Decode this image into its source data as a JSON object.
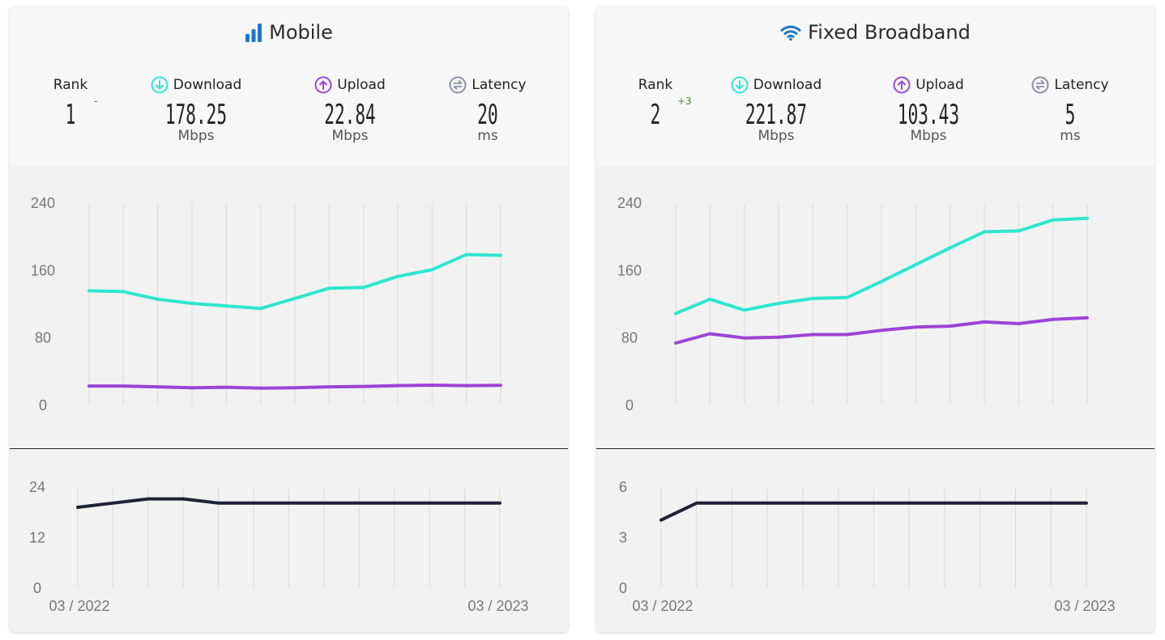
{
  "colors": {
    "download": "#2ee6d0",
    "upload": "#9b45d8",
    "latency": "#1e2233",
    "grid": "#dcdcdc",
    "axis_text": "#777777",
    "icon_blue": "#1b78c8",
    "latency_icon": "#8a8fa3",
    "rank_up": "#4a8a2a"
  },
  "panels": [
    {
      "id": "mobile",
      "title": "Mobile",
      "icon": "signal-bars-icon",
      "rank": {
        "label": "Rank",
        "value": "1",
        "change": "-"
      },
      "download": {
        "label": "Download",
        "value": "178.25",
        "unit": "Mbps"
      },
      "upload": {
        "label": "Upload",
        "value": "22.84",
        "unit": "Mbps"
      },
      "latency": {
        "label": "Latency",
        "value": "20",
        "unit": "ms"
      },
      "x_start_label": "03 / 2022",
      "x_end_label": "03 / 2023"
    },
    {
      "id": "fixed",
      "title": "Fixed Broadband",
      "icon": "wifi-icon",
      "rank": {
        "label": "Rank",
        "value": "2",
        "change": "+3"
      },
      "download": {
        "label": "Download",
        "value": "221.87",
        "unit": "Mbps"
      },
      "upload": {
        "label": "Upload",
        "value": "103.43",
        "unit": "Mbps"
      },
      "latency": {
        "label": "Latency",
        "value": "5",
        "unit": "ms"
      },
      "x_start_label": "03 / 2022",
      "x_end_label": "03 / 2023"
    }
  ],
  "chart_data": [
    {
      "type": "line",
      "panel": "Mobile",
      "x": [
        "03/2022",
        "04/2022",
        "05/2022",
        "06/2022",
        "07/2022",
        "08/2022",
        "09/2022",
        "10/2022",
        "11/2022",
        "12/2022",
        "01/2023",
        "02/2023",
        "03/2023"
      ],
      "ylim": [
        0,
        240
      ],
      "yticks": [
        0,
        80,
        160,
        240
      ],
      "series": [
        {
          "key": "download",
          "values": [
            135,
            134,
            125,
            120,
            117,
            114,
            126,
            138,
            139,
            152,
            160,
            178,
            177
          ]
        },
        {
          "key": "upload",
          "values": [
            22,
            22,
            21,
            20,
            20.5,
            19.5,
            20,
            21,
            21.5,
            22.5,
            23,
            22.5,
            22.8
          ]
        }
      ]
    },
    {
      "type": "line",
      "panel": "Mobile latency",
      "x": [
        "03/2022",
        "04/2022",
        "05/2022",
        "06/2022",
        "07/2022",
        "08/2022",
        "09/2022",
        "10/2022",
        "11/2022",
        "12/2022",
        "01/2023",
        "02/2023",
        "03/2023"
      ],
      "ylim": [
        0,
        24
      ],
      "yticks": [
        0,
        12,
        24
      ],
      "series": [
        {
          "key": "latency",
          "values": [
            19,
            20,
            21,
            21,
            20,
            20,
            20,
            20,
            20,
            20,
            20,
            20,
            20
          ]
        }
      ]
    },
    {
      "type": "line",
      "panel": "Fixed Broadband",
      "x": [
        "03/2022",
        "04/2022",
        "05/2022",
        "06/2022",
        "07/2022",
        "08/2022",
        "09/2022",
        "10/2022",
        "11/2022",
        "12/2022",
        "01/2023",
        "02/2023",
        "03/2023"
      ],
      "ylim": [
        0,
        240
      ],
      "yticks": [
        0,
        80,
        160,
        240
      ],
      "series": [
        {
          "key": "download",
          "values": [
            108,
            125,
            112,
            120,
            126,
            127,
            146,
            166,
            186,
            205,
            206,
            219,
            221
          ]
        },
        {
          "key": "upload",
          "values": [
            73,
            84,
            79,
            80,
            83,
            83,
            88,
            92,
            93,
            98,
            96,
            101,
            103
          ]
        }
      ]
    },
    {
      "type": "line",
      "panel": "Fixed Broadband latency",
      "x": [
        "03/2022",
        "04/2022",
        "05/2022",
        "06/2022",
        "07/2022",
        "08/2022",
        "09/2022",
        "10/2022",
        "11/2022",
        "12/2022",
        "01/2023",
        "02/2023",
        "03/2023"
      ],
      "ylim": [
        0,
        6
      ],
      "yticks": [
        0,
        3,
        6
      ],
      "series": [
        {
          "key": "latency",
          "values": [
            4,
            5,
            5,
            5,
            5,
            5,
            5,
            5,
            5,
            5,
            5,
            5,
            5
          ]
        }
      ]
    }
  ]
}
